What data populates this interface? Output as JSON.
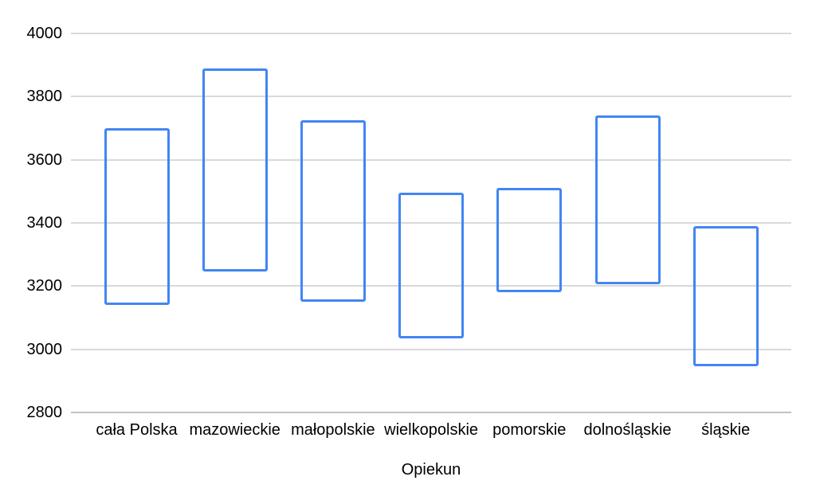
{
  "chart_data": {
    "type": "candlestick",
    "title": "",
    "xlabel": "Opiekun",
    "ylabel": "",
    "categories": [
      "cała Polska",
      "mazowieckie",
      "małopolskie",
      "wielkopolskie",
      "pomorskie",
      "dolnośląskie",
      "śląskie"
    ],
    "ranges": [
      {
        "category": "cała Polska",
        "low": 3140,
        "high": 3700
      },
      {
        "category": "mazowieckie",
        "low": 3245,
        "high": 3890
      },
      {
        "category": "małopolskie",
        "low": 3150,
        "high": 3725
      },
      {
        "category": "wielkopolskie",
        "low": 3035,
        "high": 3495
      },
      {
        "category": "pomorskie",
        "low": 3180,
        "high": 3510
      },
      {
        "category": "dolnośląskie",
        "low": 3205,
        "high": 3740
      },
      {
        "category": "śląskie",
        "low": 2945,
        "high": 3390
      }
    ],
    "yticks": [
      4000,
      3800,
      3600,
      3400,
      3200,
      3000,
      2800
    ],
    "ylim": [
      2800,
      4000
    ],
    "grid": true,
    "legend": "none",
    "colors": {
      "bar_border": "#4285f4",
      "bar_fill": "transparent",
      "gridline": "#d9d9d9",
      "axis_line": "#c2c2c2",
      "text": "#000000",
      "background": "#ffffff"
    }
  }
}
